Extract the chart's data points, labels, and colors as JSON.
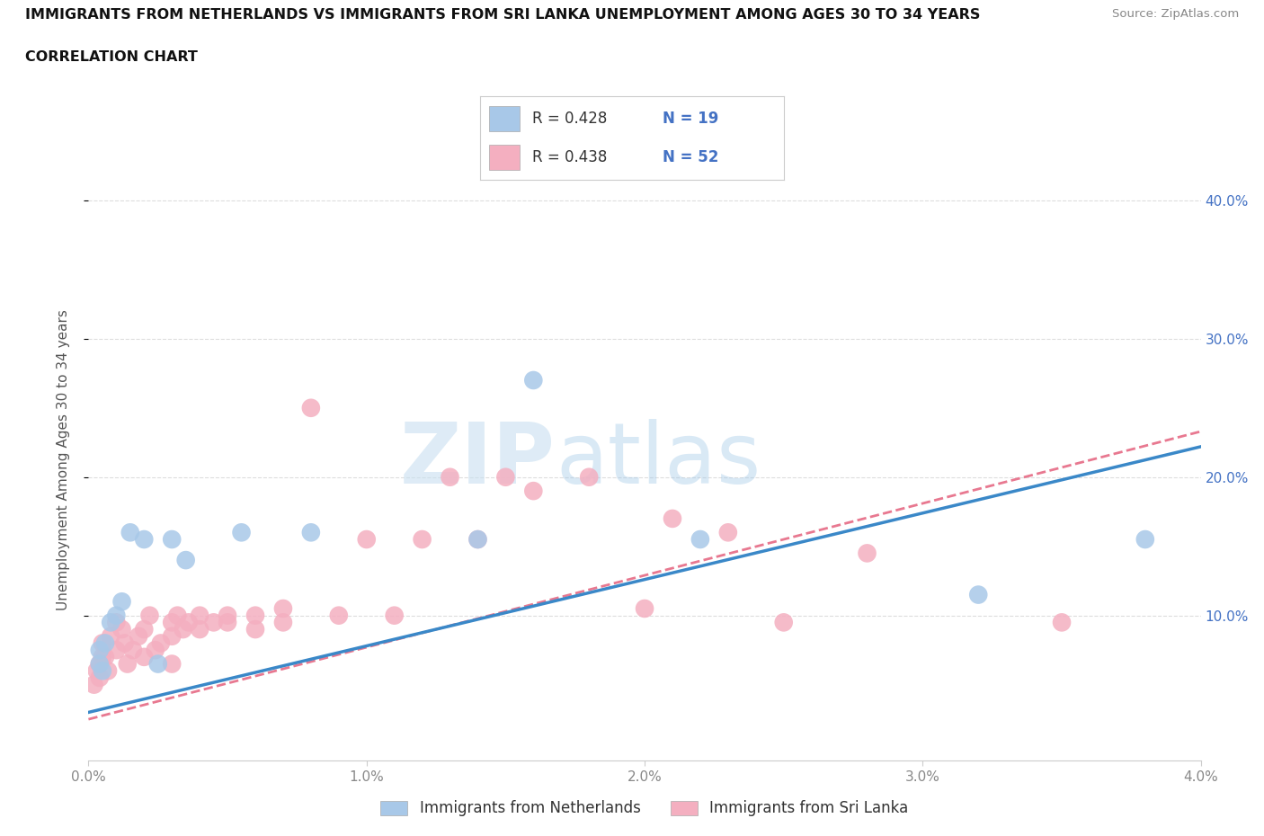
{
  "title_line1": "IMMIGRANTS FROM NETHERLANDS VS IMMIGRANTS FROM SRI LANKA UNEMPLOYMENT AMONG AGES 30 TO 34 YEARS",
  "title_line2": "CORRELATION CHART",
  "source": "Source: ZipAtlas.com",
  "ylabel": "Unemployment Among Ages 30 to 34 years",
  "xlim": [
    0.0,
    0.04
  ],
  "ylim": [
    -0.005,
    0.43
  ],
  "xticks": [
    0.0,
    0.01,
    0.02,
    0.03,
    0.04
  ],
  "xtick_labels": [
    "0.0%",
    "1.0%",
    "2.0%",
    "3.0%",
    "4.0%"
  ],
  "ytick_labels": [
    "10.0%",
    "20.0%",
    "30.0%",
    "40.0%"
  ],
  "yticks": [
    0.1,
    0.2,
    0.3,
    0.4
  ],
  "netherlands_color": "#a8c8e8",
  "srilanka_color": "#f4afc0",
  "netherlands_line_color": "#3a88c8",
  "srilanka_line_color": "#e87890",
  "R_netherlands": 0.428,
  "N_netherlands": 19,
  "R_srilanka": 0.438,
  "N_srilanka": 52,
  "legend_label_netherlands": "Immigrants from Netherlands",
  "legend_label_srilanka": "Immigrants from Sri Lanka",
  "watermark_zip": "ZIP",
  "watermark_atlas": "atlas",
  "nl_intercept": 0.03,
  "nl_slope": 4.8,
  "sl_intercept": 0.025,
  "sl_slope": 5.2,
  "netherlands_x": [
    0.0004,
    0.0004,
    0.0005,
    0.0006,
    0.0008,
    0.001,
    0.0012,
    0.0015,
    0.002,
    0.0025,
    0.003,
    0.0035,
    0.0055,
    0.008,
    0.014,
    0.016,
    0.022,
    0.032,
    0.038
  ],
  "netherlands_y": [
    0.065,
    0.075,
    0.06,
    0.08,
    0.095,
    0.1,
    0.11,
    0.16,
    0.155,
    0.065,
    0.155,
    0.14,
    0.16,
    0.16,
    0.155,
    0.27,
    0.155,
    0.115,
    0.155
  ],
  "srilanka_x": [
    0.0002,
    0.0003,
    0.0004,
    0.0004,
    0.0005,
    0.0005,
    0.0006,
    0.0007,
    0.0008,
    0.001,
    0.001,
    0.0012,
    0.0013,
    0.0014,
    0.0016,
    0.0018,
    0.002,
    0.002,
    0.0022,
    0.0024,
    0.0026,
    0.003,
    0.003,
    0.003,
    0.0032,
    0.0034,
    0.0036,
    0.004,
    0.004,
    0.0045,
    0.005,
    0.005,
    0.006,
    0.006,
    0.007,
    0.007,
    0.008,
    0.009,
    0.01,
    0.011,
    0.012,
    0.013,
    0.014,
    0.015,
    0.016,
    0.018,
    0.02,
    0.021,
    0.023,
    0.025,
    0.028,
    0.035
  ],
  "srilanka_y": [
    0.05,
    0.06,
    0.055,
    0.065,
    0.07,
    0.08,
    0.07,
    0.06,
    0.085,
    0.075,
    0.095,
    0.09,
    0.08,
    0.065,
    0.075,
    0.085,
    0.07,
    0.09,
    0.1,
    0.075,
    0.08,
    0.085,
    0.065,
    0.095,
    0.1,
    0.09,
    0.095,
    0.09,
    0.1,
    0.095,
    0.095,
    0.1,
    0.09,
    0.1,
    0.095,
    0.105,
    0.25,
    0.1,
    0.155,
    0.1,
    0.155,
    0.2,
    0.155,
    0.2,
    0.19,
    0.2,
    0.105,
    0.17,
    0.16,
    0.095,
    0.145,
    0.095
  ]
}
